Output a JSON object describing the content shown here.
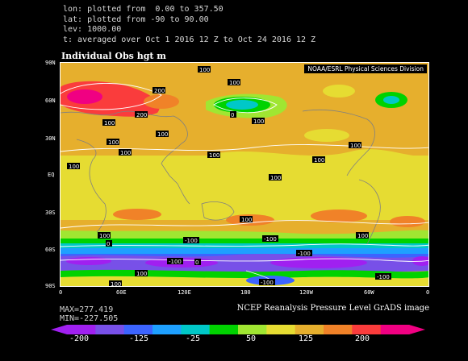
{
  "header": {
    "lon_line": "lon: plotted from  0.00 to 357.50",
    "lat_line": "lat: plotted from -90 to 90.00",
    "lev_line": "lev: 1000.00",
    "time_line": "t: averaged over Oct 1 2016 12 Z to Oct 24 2016 12 Z"
  },
  "map": {
    "title": "Individual Obs hgt m",
    "credit": "NOAA/ESRL Physical Sciences Division",
    "lat_ticks": [
      "90N",
      "60N",
      "30N",
      "EQ",
      "30S",
      "60S",
      "90S"
    ],
    "lon_ticks": [
      "0",
      "60E",
      "120E",
      "180",
      "120W",
      "60W",
      "0"
    ],
    "contour_labels": [
      "100",
      "100",
      "200",
      "200",
      "0",
      "100",
      "100",
      "100",
      "100",
      "100",
      "100",
      "100",
      "100",
      "100",
      "100",
      "100",
      "100",
      "100",
      "0",
      "-100",
      "-100",
      "0",
      "-100",
      "100",
      "-100",
      "100",
      "-100",
      "-100"
    ]
  },
  "stats": {
    "max": "MAX=277.419",
    "min": "MIN=-227.505"
  },
  "source": "NCEP Reanalysis Pressure Level GrADS image",
  "colorbar": {
    "colors": [
      "#a020f0",
      "#7850e8",
      "#3c64ff",
      "#1ea0ff",
      "#00c8c8",
      "#00d200",
      "#a0e632",
      "#e6dc32",
      "#e6af2d",
      "#f08228",
      "#fa3c3c",
      "#f00082"
    ],
    "labels": [
      "-200",
      "-125",
      "-25",
      "50",
      "125",
      "200"
    ]
  }
}
